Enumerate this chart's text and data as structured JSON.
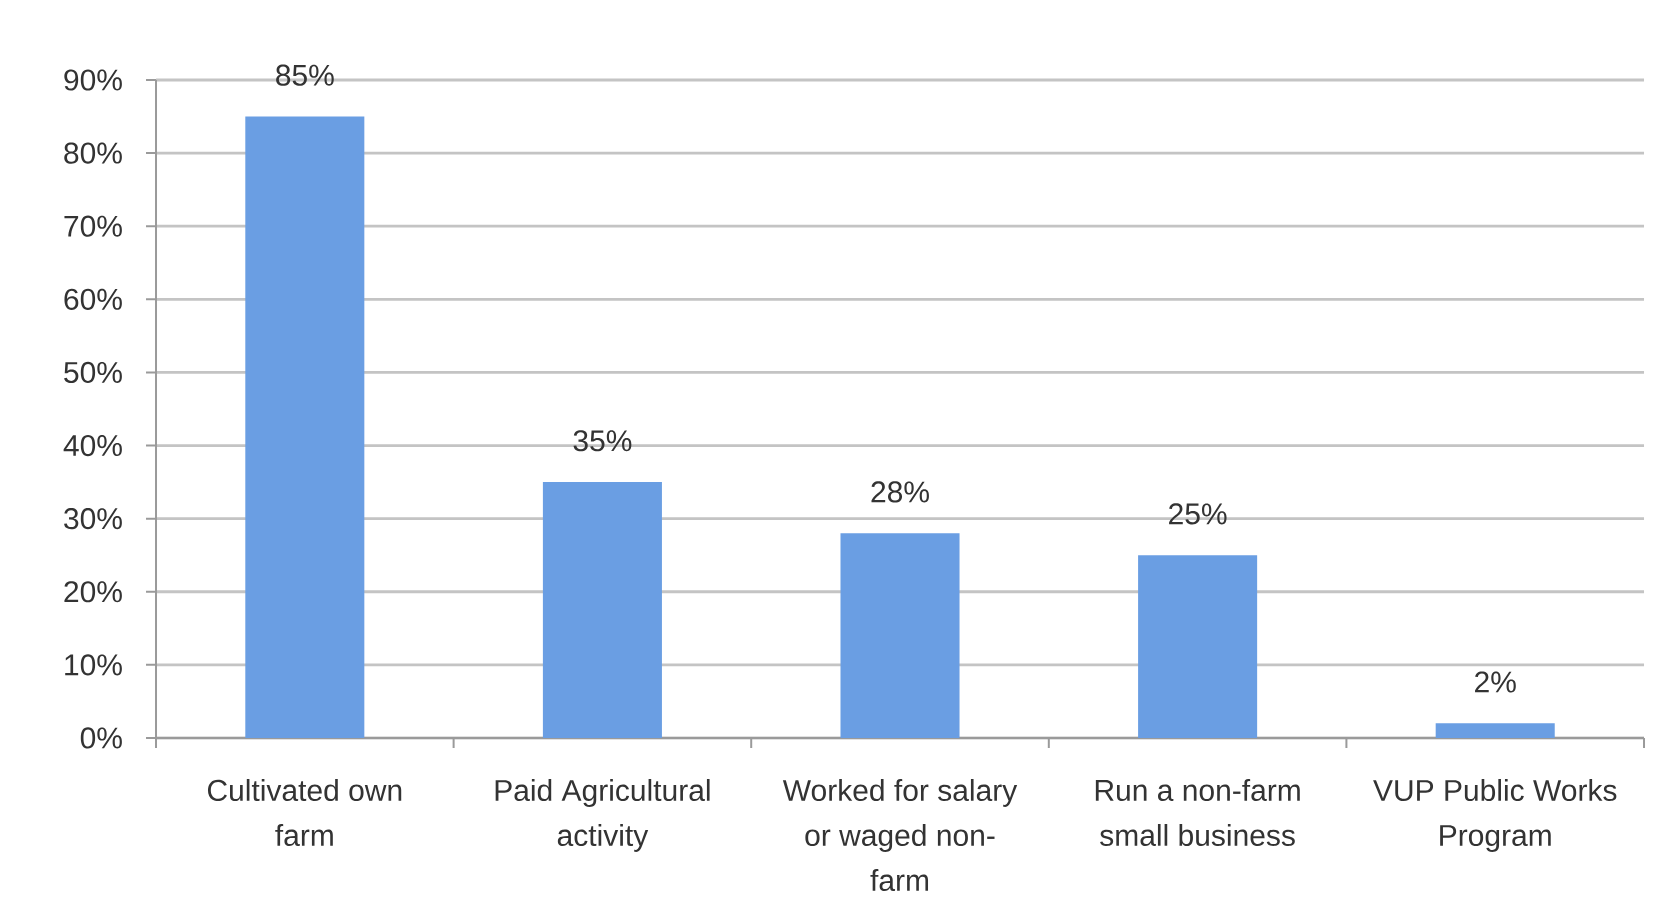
{
  "chart_data": {
    "type": "bar",
    "categories": [
      "Cultivated own farm",
      "Paid Agricultural activity",
      "Worked for salary or waged non-farm",
      "Run a non-farm small business",
      "VUP Public Works Program"
    ],
    "values": [
      85,
      35,
      28,
      25,
      2
    ],
    "value_labels": [
      "85%",
      "35%",
      "28%",
      "25%",
      "2%"
    ],
    "color": "#6a9ee3",
    "ylim": [
      0,
      90
    ],
    "yticks": [
      {
        "value": 0,
        "label": "0%"
      },
      {
        "value": 10,
        "label": "10%"
      },
      {
        "value": 20,
        "label": "20%"
      },
      {
        "value": 30,
        "label": "30%"
      },
      {
        "value": 40,
        "label": "40%"
      },
      {
        "value": 50,
        "label": "50%"
      },
      {
        "value": 60,
        "label": "60%"
      },
      {
        "value": 70,
        "label": "70%"
      },
      {
        "value": 80,
        "label": "80%"
      },
      {
        "value": 90,
        "label": "90%"
      }
    ],
    "grid": "y"
  }
}
